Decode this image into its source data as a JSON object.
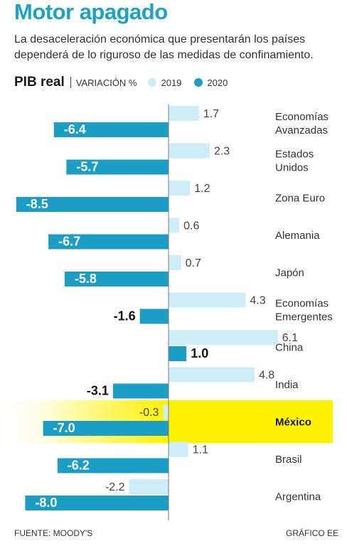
{
  "title": "Motor apagado",
  "subtitle": [
    "La desaceleración económica que presentarán los países",
    "dependerá de lo riguroso de las medidas de confinamiento."
  ],
  "legend": {
    "metric": "PIB real",
    "unit": "VARIACIÓN %",
    "items": [
      {
        "label": "2019",
        "color": "#cdeef8"
      },
      {
        "label": "2020",
        "color": "#1a9ec6"
      }
    ]
  },
  "chart_data": {
    "type": "bar",
    "orientation": "horizontal",
    "categories": [
      [
        "Economías",
        "Avanzadas"
      ],
      [
        "Estados",
        "Unidos"
      ],
      [
        "Zona Euro"
      ],
      [
        "Alemania"
      ],
      [
        "Japón"
      ],
      [
        "Economías",
        "Emergentes"
      ],
      [
        "China"
      ],
      [
        "India"
      ],
      [
        "México"
      ],
      [
        "Brasil"
      ],
      [
        "Argentina"
      ]
    ],
    "series": [
      {
        "name": "2019",
        "color": "#cdeef8",
        "values": [
          1.7,
          2.3,
          1.2,
          0.6,
          0.7,
          4.3,
          6.1,
          4.8,
          -0.3,
          1.1,
          -2.2
        ],
        "labels": [
          "1.7",
          "2.3",
          "1.2",
          "0.6",
          "0.7",
          "4.3",
          "6.1",
          "4.8",
          "-0.3",
          "1.1",
          "-2.2"
        ]
      },
      {
        "name": "2020",
        "color": "#1a9ec6",
        "values": [
          -6.4,
          -5.7,
          -8.5,
          -6.7,
          -5.8,
          -1.6,
          1.0,
          -3.1,
          -7.0,
          -6.2,
          -8.0
        ],
        "labels": [
          "-6.4",
          "-5.7",
          "-8.5",
          "-6.7",
          "-5.8",
          "-1.6",
          "1.0",
          "-3.1",
          "-7.0",
          "-6.2",
          "-8.0"
        ]
      }
    ],
    "highlight_category": "México",
    "highlight_color": "#fff200",
    "xlim": [
      -8.6,
      8.6
    ]
  },
  "footer": {
    "source": "FUENTE: MOODY'S",
    "credit": "GRÁFICO EE"
  }
}
